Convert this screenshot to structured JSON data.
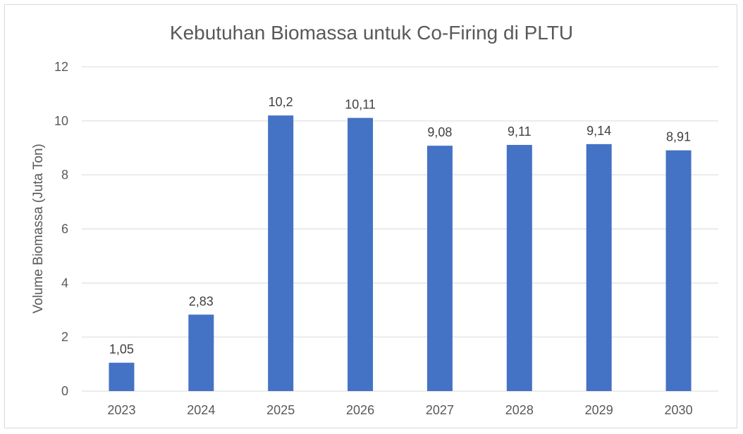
{
  "chart_data": {
    "type": "bar",
    "title": "Kebutuhan Biomassa untuk Co-Firing di PLTU",
    "xlabel": "",
    "ylabel": "Volume Biomassa (Juta Ton)",
    "categories": [
      "2023",
      "2024",
      "2025",
      "2026",
      "2027",
      "2028",
      "2029",
      "2030"
    ],
    "values": [
      1.05,
      2.83,
      10.2,
      10.11,
      9.08,
      9.11,
      9.14,
      8.91
    ],
    "data_labels": [
      "1,05",
      "2,83",
      "10,2",
      "10,11",
      "9,08",
      "9,11",
      "9,14",
      "8,91"
    ],
    "ylim": [
      0,
      12
    ],
    "yticks": [
      0,
      2,
      4,
      6,
      8,
      10,
      12
    ],
    "grid": true,
    "legend": "none",
    "bar_color": "#4472C4"
  }
}
